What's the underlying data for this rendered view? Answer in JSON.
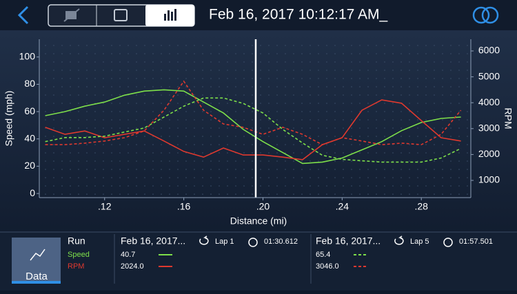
{
  "header": {
    "timestamp": "Feb 16, 2017 10:12:17 AM_"
  },
  "chart_data": {
    "type": "line",
    "x_label": "Distance (mi)",
    "y_label": "Speed (mph)",
    "y2_label": "RPM",
    "xlim": [
      0.087,
      0.305
    ],
    "xticks": [
      {
        "value": 0.12,
        "label": ".12"
      },
      {
        "value": 0.16,
        "label": ".16"
      },
      {
        "value": 0.2,
        "label": ".20"
      },
      {
        "value": 0.24,
        "label": ".24"
      },
      {
        "value": 0.28,
        "label": ".28"
      }
    ],
    "ylim": [
      -3,
      113
    ],
    "yticks": [
      0,
      20,
      40,
      60,
      80,
      100
    ],
    "y2lim": [
      335,
      6452
    ],
    "y2ticks": [
      1000,
      2000,
      3000,
      4000,
      5000,
      6000
    ],
    "x": [
      0.09,
      0.1,
      0.11,
      0.12,
      0.13,
      0.14,
      0.15,
      0.16,
      0.17,
      0.18,
      0.19,
      0.2,
      0.21,
      0.22,
      0.23,
      0.24,
      0.25,
      0.26,
      0.27,
      0.28,
      0.29,
      0.3
    ],
    "series": [
      {
        "name": "Speed",
        "color": "#7ee04a",
        "dashed": false,
        "values": [
          57,
          60,
          64,
          67,
          72,
          75,
          76,
          75,
          67,
          59,
          47,
          38,
          30,
          22,
          23,
          26,
          32,
          38,
          46,
          52,
          55,
          56
        ]
      },
      {
        "name": "RPM",
        "color": "#e0392e",
        "dashed": false,
        "axis": "y2",
        "values": [
          3050,
          2780,
          2910,
          2650,
          2780,
          2910,
          2520,
          2120,
          1900,
          2250,
          1980,
          1980,
          1900,
          1800,
          2380,
          2650,
          3710,
          4110,
          3980,
          3310,
          2650,
          2520
        ]
      },
      {
        "color": "#7ee04a",
        "dashed": true,
        "values": [
          38,
          41,
          41,
          42,
          45,
          48,
          56,
          64,
          70,
          70,
          66,
          59,
          47,
          37,
          28,
          25,
          24,
          23,
          23,
          23,
          26,
          33
        ]
      },
      {
        "color": "#e0392e",
        "dashed": true,
        "axis": "y2",
        "values": [
          2380,
          2380,
          2440,
          2520,
          2650,
          2910,
          3710,
          4830,
          3710,
          3180,
          3050,
          2780,
          3050,
          2780,
          2380,
          2650,
          2520,
          2380,
          2440,
          2380,
          2780,
          3710
        ]
      }
    ]
  },
  "footer": {
    "button": "Data",
    "run": "Run",
    "laps": [
      {
        "date": "Feb 16, 2017...",
        "lap": "Lap 1",
        "time": "01:30.612",
        "speed": "40.7",
        "rpm": "2024.0"
      },
      {
        "date": "Feb 16, 2017...",
        "lap": "Lap 5",
        "time": "01:57.501",
        "speed": "65.4",
        "rpm": "3046.0"
      }
    ]
  }
}
